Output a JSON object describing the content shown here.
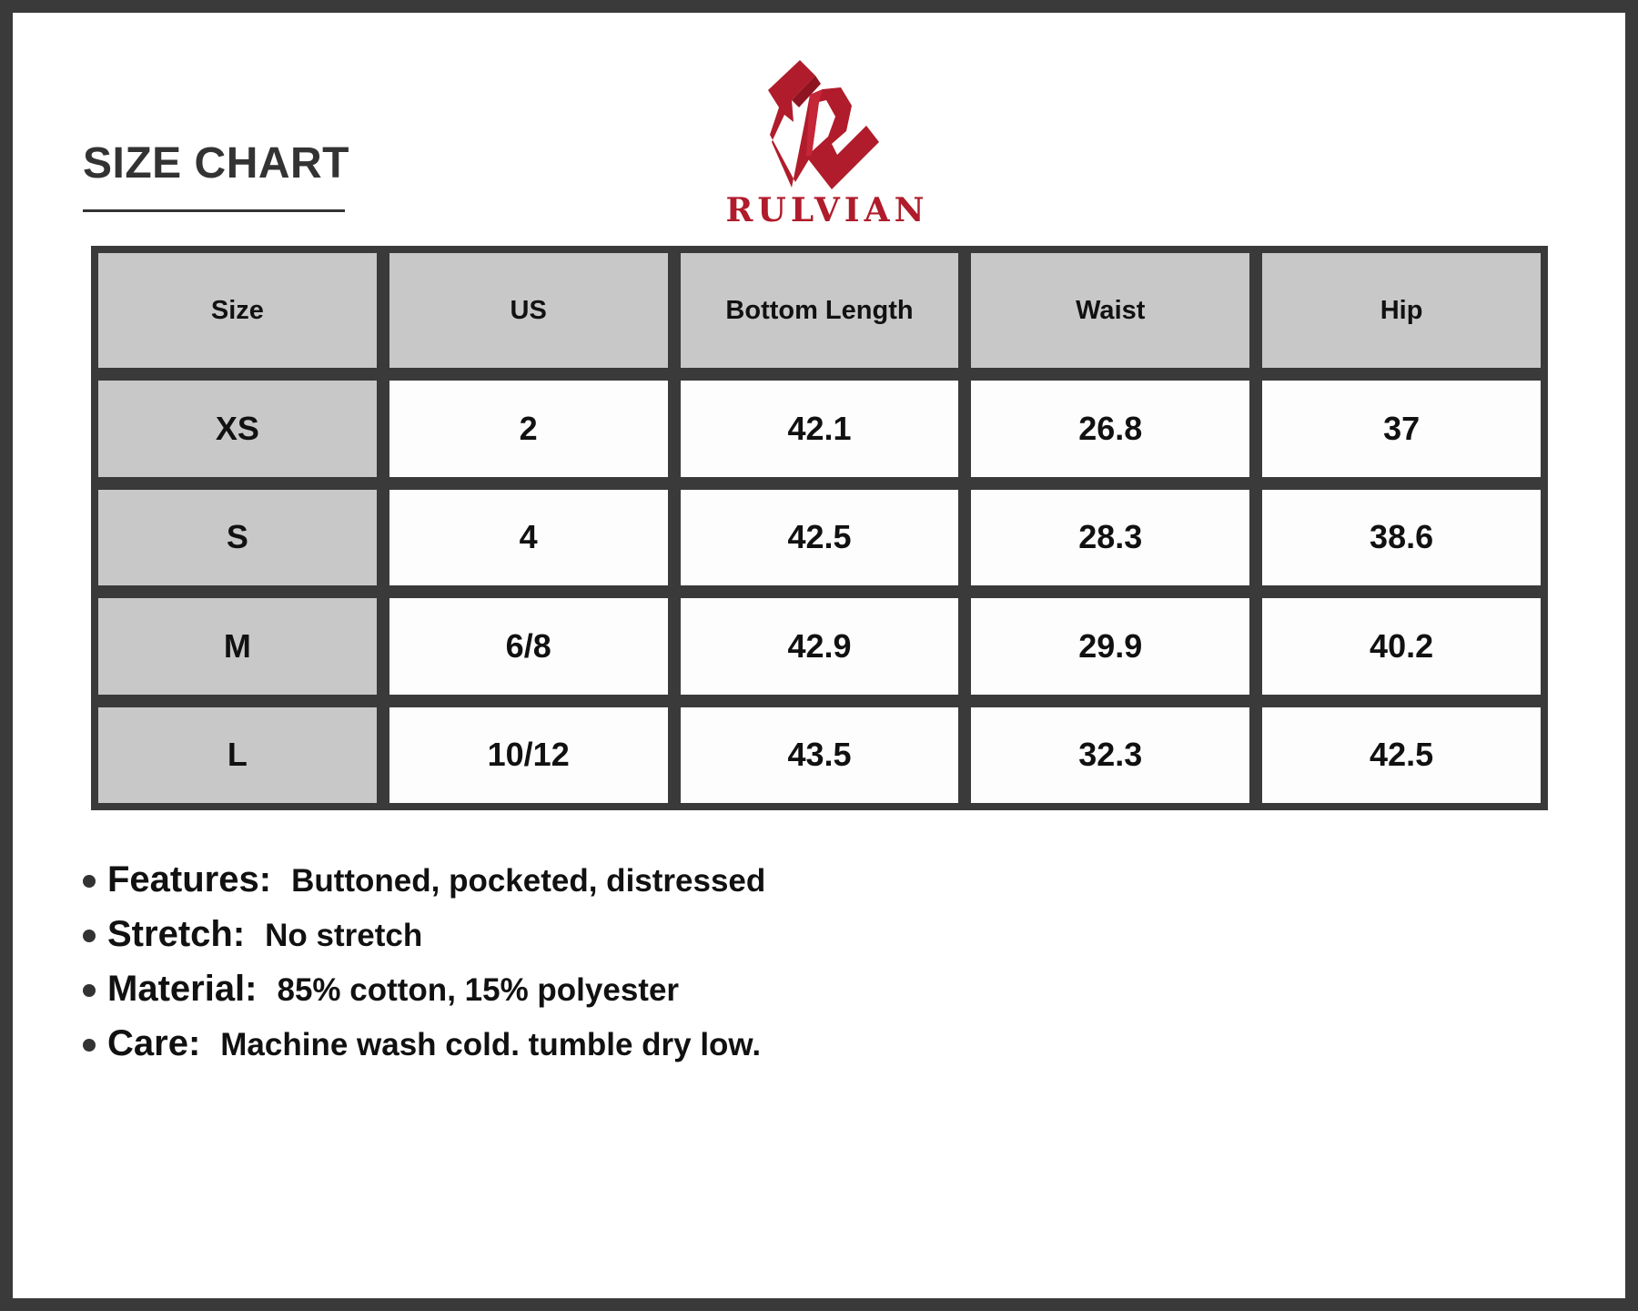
{
  "header": {
    "title": "SIZE CHART",
    "brand": "RULVIAN",
    "brand_color": "#b01c2b",
    "logo_icon": "stylized-r-logo"
  },
  "table": {
    "columns": [
      "Size",
      "US",
      "Bottom Length",
      "Waist",
      "Hip"
    ],
    "rows": [
      [
        "XS",
        "2",
        "42.1",
        "26.8",
        "37"
      ],
      [
        "S",
        "4",
        "42.5",
        "28.3",
        "38.6"
      ],
      [
        "M",
        "6/8",
        "42.9",
        "29.9",
        "40.2"
      ],
      [
        "L",
        "10/12",
        "43.5",
        "32.3",
        "42.5"
      ]
    ]
  },
  "details": [
    {
      "label": "Features:",
      "value": "Buttoned, pocketed, distressed"
    },
    {
      "label": "Stretch:",
      "value": "No stretch"
    },
    {
      "label": "Material:",
      "value": "85% cotton, 15% polyester"
    },
    {
      "label": "Care:",
      "value": "Machine wash cold. tumble dry low."
    }
  ]
}
